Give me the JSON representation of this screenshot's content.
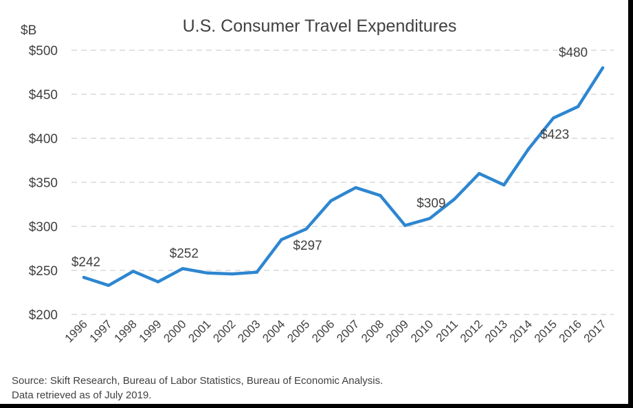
{
  "chart_data": {
    "type": "line",
    "title": "U.S. Consumer Travel Expenditures",
    "ylabel": "$B",
    "xlabel": "",
    "ylim": [
      200,
      500
    ],
    "yticks": [
      200,
      250,
      300,
      350,
      400,
      450,
      500
    ],
    "ytick_labels": [
      "$200",
      "$250",
      "$300",
      "$350",
      "$400",
      "$450",
      "$500"
    ],
    "grid": "horizontal dashed",
    "legend": "none",
    "categories": [
      "1996",
      "1997",
      "1998",
      "1999",
      "2000",
      "2001",
      "2002",
      "2003",
      "2004",
      "2005",
      "2006",
      "2007",
      "2008",
      "2009",
      "2010",
      "2011",
      "2012",
      "2013",
      "2014",
      "2015",
      "2016",
      "2017"
    ],
    "series": [
      {
        "values": [
          242,
          233,
          249,
          237,
          252,
          247,
          246,
          248,
          285,
          297,
          329,
          344,
          335,
          301,
          309,
          331,
          360,
          347,
          388,
          423,
          436,
          480
        ],
        "color": "#2E86D0"
      }
    ],
    "data_labels": [
      {
        "category": "1996",
        "text": "$242",
        "pos": "above"
      },
      {
        "category": "2000",
        "text": "$252",
        "pos": "above"
      },
      {
        "category": "2005",
        "text": "$297",
        "pos": "below"
      },
      {
        "category": "2010",
        "text": "$309",
        "pos": "above"
      },
      {
        "category": "2015",
        "text": "$423",
        "pos": "below"
      },
      {
        "category": "2017",
        "text": "$480",
        "pos": "above"
      }
    ]
  },
  "source": {
    "line1": "Source: Skift Research, Bureau of Labor Statistics, Bureau of Economic Analysis.",
    "line2": "Data retrieved as of July 2019."
  },
  "colors": {
    "line": "#2E86D0",
    "grid": "#d9d9d9",
    "text": "#404040",
    "background": "#ffffff",
    "border": "#000000"
  }
}
